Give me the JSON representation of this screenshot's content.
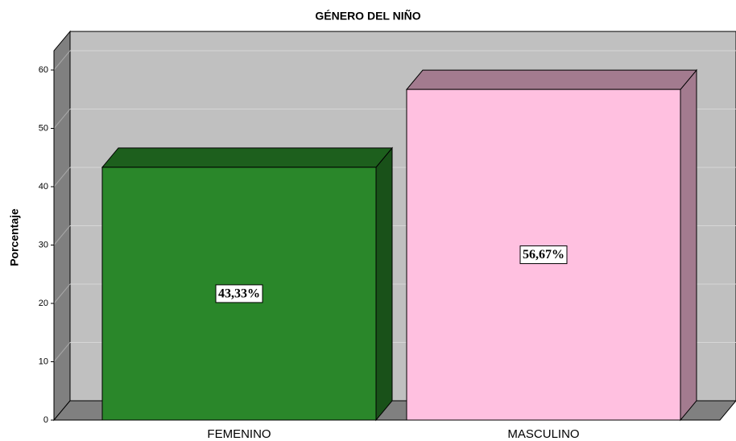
{
  "chart_data": {
    "type": "bar3d",
    "title": "GÉNERO DEL NIÑO",
    "y_label": "Porcentaje",
    "categories": [
      "FEMENINO",
      "MASCULINO"
    ],
    "values": [
      43.33,
      56.67
    ],
    "value_labels": [
      "43,33%",
      "56,67%"
    ],
    "colors": [
      "#2a872a",
      "#ffc0e0"
    ],
    "ylim": [
      0,
      63.3
    ],
    "yticks": [
      0,
      10,
      20,
      30,
      40,
      50,
      60
    ],
    "grid": true
  }
}
